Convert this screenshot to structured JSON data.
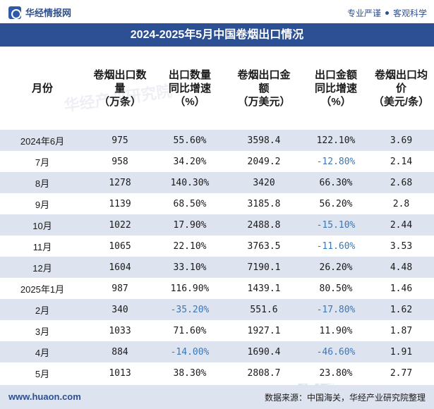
{
  "header": {
    "logo_text": "华经情报网",
    "slogan_left": "专业严谨",
    "slogan_right": "客观科学"
  },
  "title": "2024-2025年5月中国卷烟出口情况",
  "table": {
    "columns": [
      "月份",
      "卷烟出口数量（万条）",
      "出口数量同比增速（%）",
      "卷烟出口金额（万美元）",
      "出口金额同比增速（%）",
      "卷烟出口均价（美元/条）"
    ],
    "column_lines": [
      [
        "月份"
      ],
      [
        "卷烟出口数",
        "量",
        "（万条）"
      ],
      [
        "出口数量",
        "同比增速",
        "（%）"
      ],
      [
        "卷烟出口金",
        "额",
        "（万美元）"
      ],
      [
        "出口金额",
        "同比增速",
        "（%）"
      ],
      [
        "卷烟出口均",
        "价",
        "（美元/条）"
      ]
    ],
    "rows": [
      {
        "month": "2024年6月",
        "qty": "975",
        "qty_yoy": "55.60%",
        "amount": "3598.4",
        "amount_yoy": "122.10%",
        "price": "3.69"
      },
      {
        "month": "7月",
        "qty": "958",
        "qty_yoy": "34.20%",
        "amount": "2049.2",
        "amount_yoy": "-12.80%",
        "price": "2.14"
      },
      {
        "month": "8月",
        "qty": "1278",
        "qty_yoy": "140.30%",
        "amount": "3420",
        "amount_yoy": "66.30%",
        "price": "2.68"
      },
      {
        "month": "9月",
        "qty": "1139",
        "qty_yoy": "68.50%",
        "amount": "3185.8",
        "amount_yoy": "56.20%",
        "price": "2.8"
      },
      {
        "month": "10月",
        "qty": "1022",
        "qty_yoy": "17.90%",
        "amount": "2488.8",
        "amount_yoy": "-15.10%",
        "price": "2.44"
      },
      {
        "month": "11月",
        "qty": "1065",
        "qty_yoy": "22.10%",
        "amount": "3763.5",
        "amount_yoy": "-11.60%",
        "price": "3.53"
      },
      {
        "month": "12月",
        "qty": "1604",
        "qty_yoy": "33.10%",
        "amount": "7190.1",
        "amount_yoy": "26.20%",
        "price": "4.48"
      },
      {
        "month": "2025年1月",
        "qty": "987",
        "qty_yoy": "116.90%",
        "amount": "1439.1",
        "amount_yoy": "80.50%",
        "price": "1.46"
      },
      {
        "month": "2月",
        "qty": "340",
        "qty_yoy": "-35.20%",
        "amount": "551.6",
        "amount_yoy": "-17.80%",
        "price": "1.62"
      },
      {
        "month": "3月",
        "qty": "1033",
        "qty_yoy": "71.60%",
        "amount": "1927.1",
        "amount_yoy": "11.90%",
        "price": "1.87"
      },
      {
        "month": "4月",
        "qty": "884",
        "qty_yoy": "-14.00%",
        "amount": "1690.4",
        "amount_yoy": "-46.60%",
        "price": "1.91"
      },
      {
        "month": "5月",
        "qty": "1013",
        "qty_yoy": "38.30%",
        "amount": "2808.7",
        "amount_yoy": "23.80%",
        "price": "2.77"
      }
    ]
  },
  "footer": {
    "site": "www.huaon.com",
    "source": "数据来源：中国海关，华经产业研究院整理"
  },
  "watermark": "华经产业研究院",
  "colors": {
    "title_bg": "#2d4f93",
    "stripe": "#dde3ef",
    "negative": "#3a78b8",
    "brand": "#2f4f8f"
  }
}
